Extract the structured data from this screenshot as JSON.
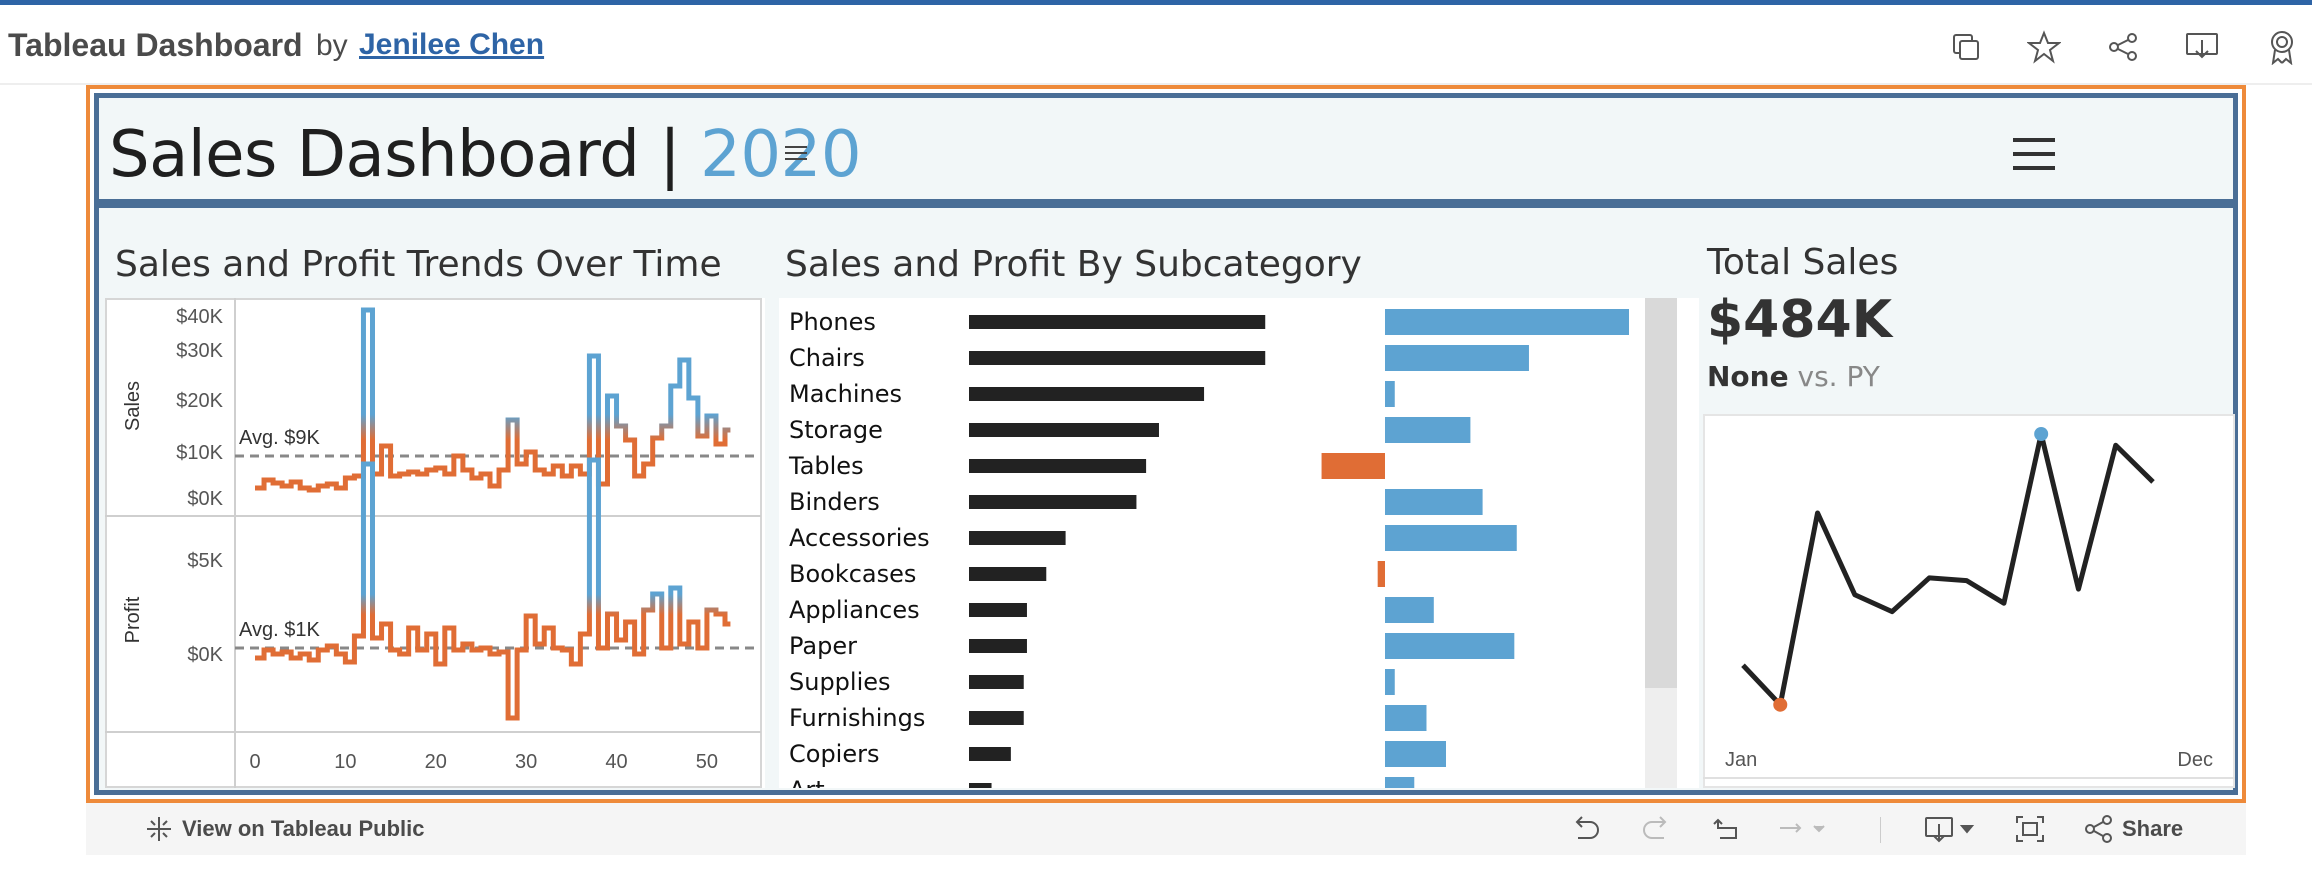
{
  "header": {
    "title": "Tableau Dashboard",
    "by": "by",
    "author": "Jenilee Chen"
  },
  "dashboard": {
    "title": "Sales Dashboard",
    "separator": "|",
    "year": "2020"
  },
  "trends": {
    "title": "Sales and Profit Trends Over Time",
    "sales_label": "Sales",
    "profit_label": "Profit",
    "sales_ticks": [
      "$40K",
      "$30K",
      "$20K",
      "$10K",
      "$0K"
    ],
    "profit_ticks": [
      "$5K",
      "$0K"
    ],
    "sales_avg": "Avg. $9K",
    "profit_avg": "Avg. $1K",
    "x_ticks": [
      "0",
      "10",
      "20",
      "30",
      "40",
      "50"
    ]
  },
  "subcategory": {
    "title": "Sales and Profit By Subcategory",
    "rows": [
      {
        "name": "Phones",
        "sales": 0.92,
        "profit": 1.0
      },
      {
        "name": "Chairs",
        "sales": 0.92,
        "profit": 0.59
      },
      {
        "name": "Machines",
        "sales": 0.73,
        "profit": 0.04
      },
      {
        "name": "Storage",
        "sales": 0.59,
        "profit": 0.35
      },
      {
        "name": "Tables",
        "sales": 0.55,
        "profit": -0.26
      },
      {
        "name": "Binders",
        "sales": 0.52,
        "profit": 0.4
      },
      {
        "name": "Accessories",
        "sales": 0.3,
        "profit": 0.54
      },
      {
        "name": "Bookcases",
        "sales": 0.24,
        "profit": -0.03
      },
      {
        "name": "Appliances",
        "sales": 0.18,
        "profit": 0.2
      },
      {
        "name": "Paper",
        "sales": 0.18,
        "profit": 0.53
      },
      {
        "name": "Supplies",
        "sales": 0.17,
        "profit": 0.04
      },
      {
        "name": "Furnishings",
        "sales": 0.17,
        "profit": 0.17
      },
      {
        "name": "Copiers",
        "sales": 0.13,
        "profit": 0.25
      },
      {
        "name": "Art",
        "sales": 0.07,
        "profit": 0.12
      }
    ]
  },
  "total_sales": {
    "title": "Total Sales",
    "value": "$484K",
    "compare_bold": "None",
    "compare_rest": "vs. PY",
    "x_start": "Jan",
    "x_end": "Dec",
    "monthly": [
      0.18,
      0.04,
      0.72,
      0.43,
      0.37,
      0.49,
      0.48,
      0.4,
      1.0,
      0.45,
      0.96,
      0.83
    ]
  },
  "bottom": {
    "view_on": "View on Tableau Public",
    "share": "Share"
  },
  "colors": {
    "accent": "#5da3d2",
    "negative": "#e06d35",
    "bar_dark": "#222222",
    "frame_orange": "#ee8a3a",
    "frame_blue": "#4a6e96",
    "link": "#2e64a6"
  }
}
